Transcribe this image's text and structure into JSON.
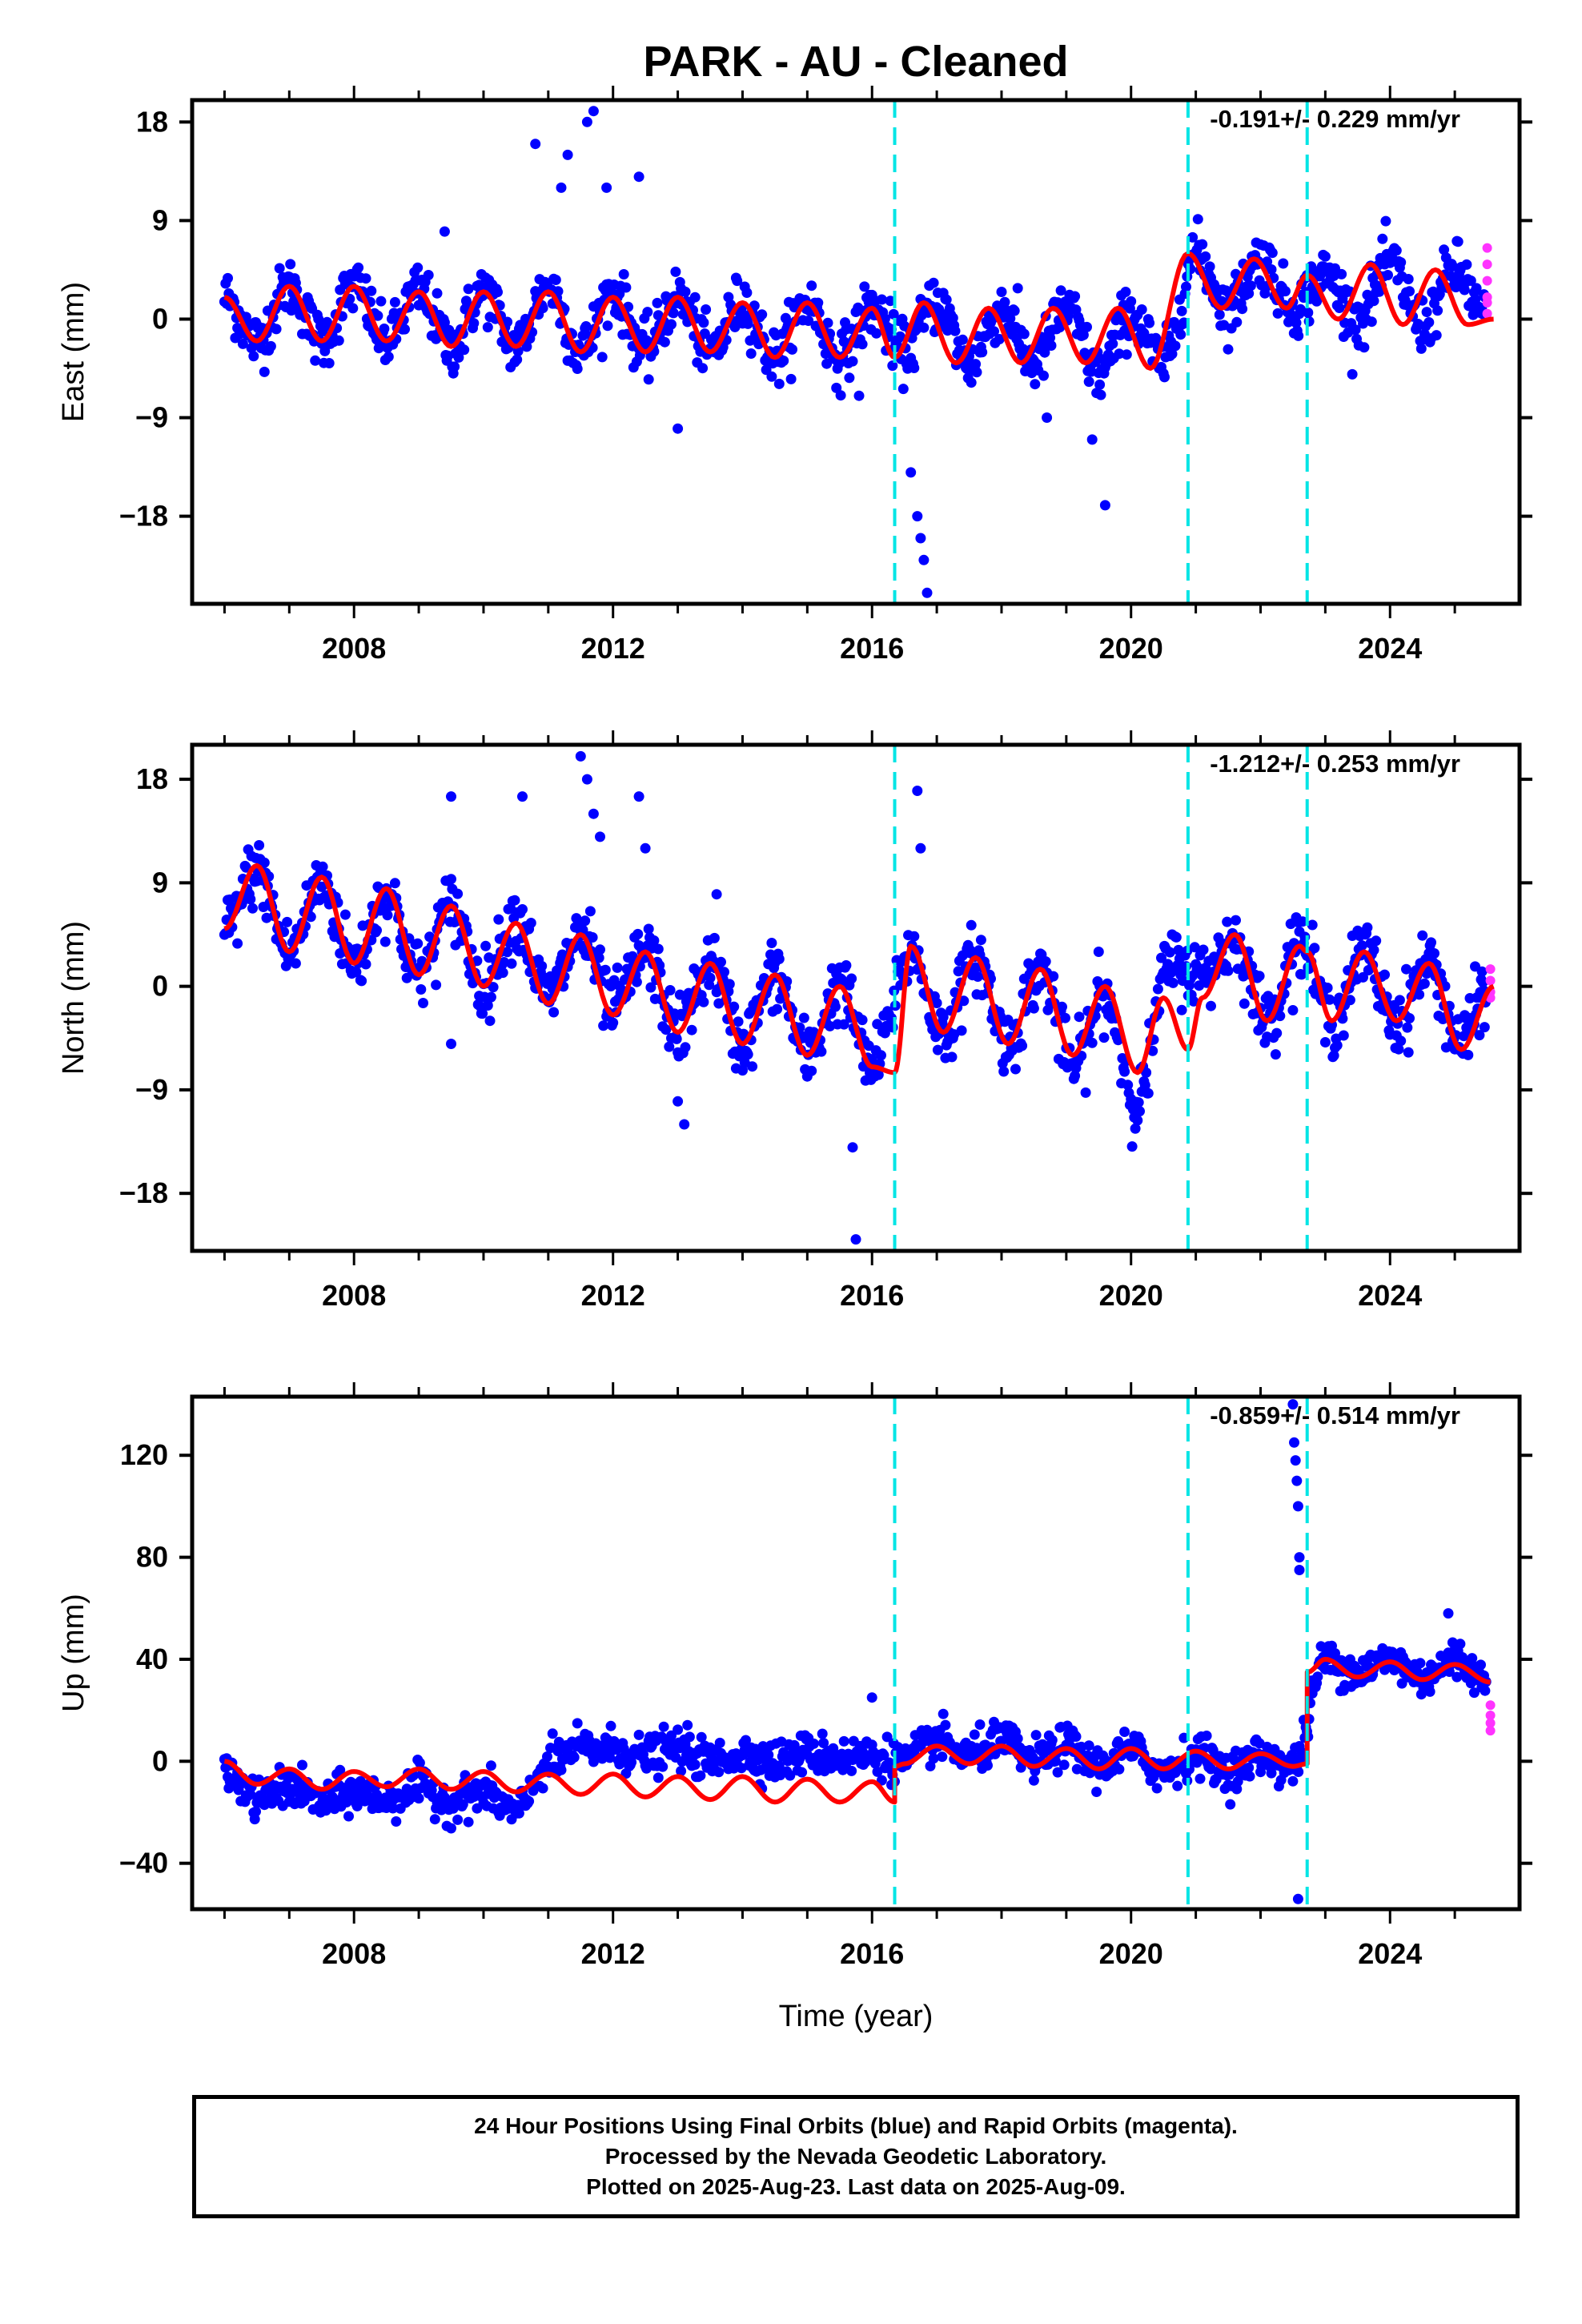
{
  "title": "PARK  - AU - Cleaned",
  "colors": {
    "final_orbits": "#0000ff",
    "rapid_orbits": "#ff33ff",
    "model": "#ff0000",
    "breaks": "#00e5e5",
    "frame": "#000000"
  },
  "footer": {
    "line1": "24 Hour Positions Using Final Orbits (blue) and Rapid Orbits (magenta).",
    "line2": "Processed by the Nevada Geodetic Laboratory.",
    "line3": "Plotted on 2025-Aug-23. Last data on 2025-Aug-09."
  },
  "chart_data": [
    {
      "type": "scatter",
      "ylabel": "East (mm)",
      "xlabel": "",
      "xlim": [
        2005.5,
        2026.0
      ],
      "ylim": [
        -26,
        20
      ],
      "xticks": [
        "2008",
        "2012",
        "2016",
        "2020",
        "2024"
      ],
      "xtick_values": [
        2008,
        2012,
        2016,
        2020,
        2024
      ],
      "yticks": [
        "18",
        "9",
        "0",
        "−9",
        "−18"
      ],
      "ytick_values": [
        18,
        9,
        0,
        -9,
        -18
      ],
      "rate_label": "-0.191+/- 0.229 mm/yr",
      "breaks": [
        2016.35,
        2020.88,
        2022.72
      ],
      "model": {
        "x": [
          2006.0,
          2006.5,
          2007.0,
          2007.5,
          2008.0,
          2008.5,
          2009.0,
          2009.5,
          2010.0,
          2010.5,
          2011.0,
          2011.5,
          2012.0,
          2012.5,
          2013.0,
          2013.5,
          2014.0,
          2014.5,
          2015.0,
          2015.5,
          2016.0,
          2016.35,
          2016.8,
          2017.3,
          2017.8,
          2018.3,
          2018.8,
          2019.3,
          2019.8,
          2020.3,
          2020.88,
          2021.4,
          2021.9,
          2022.4,
          2022.72,
          2023.2,
          2023.7,
          2024.2,
          2024.7,
          2025.2,
          2025.6
        ],
        "y": [
          2.0,
          -2.0,
          3.0,
          -2.0,
          3.0,
          -2.0,
          2.5,
          -2.5,
          2.5,
          -2.5,
          2.5,
          -3.0,
          2.0,
          -3.0,
          2.0,
          -3.0,
          1.5,
          -3.5,
          1.5,
          -3.5,
          1.0,
          -3.5,
          1.5,
          -4.0,
          1.0,
          -4.0,
          1.0,
          -4.0,
          1.0,
          -4.5,
          6.0,
          1.0,
          5.5,
          1.0,
          4.0,
          0.0,
          5.0,
          -0.5,
          4.5,
          -0.5,
          0.0
        ]
      },
      "scatter_series": [
        {
          "x": [
            2006.0,
            2006.5,
            2007.0,
            2007.5,
            2008.0,
            2008.5,
            2009.0,
            2009.5,
            2010.0,
            2010.5,
            2011.0,
            2011.5,
            2012.0,
            2012.5,
            2013.0,
            2013.5,
            2014.0,
            2014.5,
            2015.0,
            2015.5,
            2016.0,
            2016.5,
            2017.0,
            2017.5,
            2018.0,
            2018.5,
            2019.0,
            2019.5,
            2020.0,
            2020.5,
            2021.0,
            2021.5,
            2022.0,
            2022.5,
            2023.0,
            2023.5,
            2024.0,
            2024.5,
            2025.0,
            2025.5
          ],
          "y": [
            2.0,
            -2.0,
            3.0,
            -2.0,
            3.0,
            -2.0,
            2.5,
            -2.5,
            2.5,
            -2.5,
            3.0,
            -3.0,
            2.5,
            -3.0,
            2.0,
            -3.0,
            1.5,
            -3.5,
            1.5,
            -3.5,
            1.0,
            -3.0,
            1.5,
            -4.0,
            1.0,
            -4.0,
            1.0,
            -5.0,
            0.5,
            -4.0,
            6.0,
            1.0,
            5.5,
            1.0,
            4.0,
            0.0,
            5.0,
            -0.5,
            4.5,
            0.0
          ]
        }
      ],
      "scatter_noise": 2.2,
      "outliers": {
        "x": [
          2010.8,
          2011.2,
          2011.3,
          2011.6,
          2011.7,
          2011.9,
          2012.4,
          2009.4,
          2016.6,
          2016.7,
          2016.75,
          2016.8,
          2016.85,
          2018.7,
          2019.4,
          2019.6,
          2013.0,
          2015.8
        ],
        "y": [
          16,
          12,
          15,
          18,
          19,
          12,
          13,
          8,
          -14,
          -18,
          -20,
          -22,
          -25,
          -9,
          -11,
          -17,
          -10,
          -7
        ]
      },
      "rapid": {
        "x": [
          2025.5,
          2025.5,
          2025.5,
          2025.5,
          2025.5,
          2025.5
        ],
        "y": [
          6.5,
          5.0,
          3.5,
          2.0,
          0.5,
          1.5
        ]
      }
    },
    {
      "type": "scatter",
      "ylabel": "North (mm)",
      "xlabel": "",
      "xlim": [
        2005.5,
        2026.0
      ],
      "ylim": [
        -23,
        21
      ],
      "xticks": [
        "2008",
        "2012",
        "2016",
        "2020",
        "2024"
      ],
      "xtick_values": [
        2008,
        2012,
        2016,
        2020,
        2024
      ],
      "yticks": [
        "18",
        "9",
        "0",
        "−9",
        "−18"
      ],
      "ytick_values": [
        18,
        9,
        0,
        -9,
        -18
      ],
      "rate_label": "-1.212+/- 0.253 mm/yr",
      "breaks": [
        2016.35,
        2020.88,
        2022.72
      ],
      "model": {
        "x": [
          2006.0,
          2006.5,
          2007.0,
          2007.5,
          2008.0,
          2008.5,
          2009.0,
          2009.5,
          2010.0,
          2010.5,
          2011.0,
          2011.5,
          2012.0,
          2012.5,
          2013.0,
          2013.5,
          2014.0,
          2014.5,
          2015.0,
          2015.5,
          2016.0,
          2016.35,
          2016.6,
          2017.1,
          2017.6,
          2018.1,
          2018.6,
          2019.1,
          2019.6,
          2020.1,
          2020.5,
          2020.88,
          2021.1,
          2021.6,
          2022.1,
          2022.6,
          2022.72,
          2023.1,
          2023.6,
          2024.1,
          2024.6,
          2025.1,
          2025.6
        ],
        "y": [
          5.0,
          10.5,
          3.0,
          9.5,
          2.0,
          8.5,
          1.0,
          7.0,
          0.0,
          5.5,
          -1.5,
          4.5,
          -2.5,
          3.0,
          -4.0,
          2.0,
          -5.0,
          1.0,
          -6.0,
          0.0,
          -7.0,
          -7.5,
          3.5,
          -4.0,
          2.5,
          -5.0,
          1.5,
          -6.0,
          0.0,
          -7.5,
          -1.0,
          -5.5,
          -1.0,
          4.5,
          -3.0,
          3.5,
          3.0,
          -3.0,
          3.0,
          -3.0,
          2.0,
          -5.5,
          0.0
        ]
      },
      "scatter_series": [
        {
          "x": [
            2006.0,
            2006.5,
            2007.0,
            2007.5,
            2008.0,
            2008.5,
            2009.0,
            2009.5,
            2010.0,
            2010.5,
            2011.0,
            2011.5,
            2012.0,
            2012.5,
            2013.0,
            2013.5,
            2014.0,
            2014.5,
            2015.0,
            2015.5,
            2016.0,
            2016.6,
            2017.1,
            2017.6,
            2018.1,
            2018.6,
            2019.1,
            2019.6,
            2020.1,
            2020.6,
            2021.1,
            2021.6,
            2022.1,
            2022.6,
            2023.1,
            2023.6,
            2024.1,
            2024.6,
            2025.1,
            2025.5
          ],
          "y": [
            5.0,
            10.0,
            3.0,
            9.0,
            2.0,
            8.0,
            1.0,
            7.0,
            0.0,
            6.0,
            -1.0,
            4.5,
            -2.0,
            3.0,
            -4.0,
            2.0,
            -5.0,
            1.0,
            -6.0,
            0.0,
            -7.0,
            3.0,
            -4.0,
            2.5,
            -5.0,
            1.5,
            -7.0,
            -1.0,
            -10.0,
            2.0,
            1.0,
            4.0,
            -3.0,
            4.0,
            -3.0,
            3.0,
            -3.0,
            2.0,
            -5.0,
            0.0
          ]
        }
      ],
      "scatter_noise": 2.4,
      "outliers": {
        "x": [
          2009.5,
          2010.6,
          2011.5,
          2011.6,
          2011.7,
          2011.8,
          2012.4,
          2012.5,
          2013.0,
          2013.1,
          2009.5,
          2015.7,
          2015.75,
          2016.7,
          2016.75,
          2019.5,
          2013.6
        ],
        "y": [
          16.5,
          16.5,
          20,
          18,
          15,
          13,
          16.5,
          12,
          -10,
          -12,
          -5,
          -14,
          -22,
          17,
          12,
          3,
          8
        ]
      },
      "rapid": {
        "x": [
          2025.55,
          2025.55,
          2025.55,
          2025.55
        ],
        "y": [
          1.5,
          0.5,
          -0.5,
          -1.0
        ]
      }
    },
    {
      "type": "scatter",
      "ylabel": "Up (mm)",
      "xlabel": "Time (year)",
      "xlim": [
        2005.5,
        2026.0
      ],
      "ylim": [
        -58,
        143
      ],
      "xticks": [
        "2008",
        "2012",
        "2016",
        "2020",
        "2024"
      ],
      "xtick_values": [
        2008,
        2012,
        2016,
        2020,
        2024
      ],
      "yticks": [
        "120",
        "80",
        "40",
        "0",
        "−40"
      ],
      "ytick_values": [
        120,
        80,
        40,
        0,
        -40
      ],
      "rate_label": "-0.859+/- 0.514 mm/yr",
      "breaks": [
        2016.35,
        2020.88,
        2022.72
      ],
      "model": {
        "x": [
          2006.0,
          2006.5,
          2007.0,
          2007.5,
          2008.0,
          2008.5,
          2009.0,
          2009.5,
          2010.0,
          2010.5,
          2011.0,
          2011.5,
          2012.0,
          2012.5,
          2013.0,
          2013.5,
          2014.0,
          2014.5,
          2015.0,
          2015.5,
          2016.0,
          2016.35,
          2016.36,
          2016.5,
          2017.0,
          2017.5,
          2018.0,
          2018.5,
          2019.0,
          2019.5,
          2020.0,
          2020.5,
          2021.0,
          2021.5,
          2022.0,
          2022.5,
          2022.72,
          2022.73,
          2023.0,
          2023.5,
          2024.0,
          2024.5,
          2025.0,
          2025.55
        ],
        "y": [
          0,
          -9,
          -3,
          -11,
          -4,
          -10,
          -3,
          -11,
          -4,
          -12,
          -5,
          -13,
          -5,
          -14,
          -6,
          -15,
          -6,
          -16,
          -7,
          -16,
          -8,
          -16,
          -2,
          -1,
          6,
          -1,
          6,
          -2,
          5,
          -3,
          5,
          -3,
          4,
          -3,
          3,
          -2,
          -1,
          35,
          40,
          33,
          39,
          32,
          38,
          31
        ]
      },
      "scatter_series": [
        {
          "x": [
            2006.0,
            2006.5,
            2007.0,
            2007.5,
            2008.0,
            2008.5,
            2009.0,
            2009.5,
            2010.0,
            2010.5,
            2011.0,
            2011.5,
            2012.0,
            2012.5,
            2013.0,
            2013.5,
            2014.0,
            2014.5,
            2015.0,
            2015.5,
            2016.0,
            2016.5,
            2017.0,
            2017.5,
            2018.0,
            2018.5,
            2019.0,
            2019.5,
            2020.0,
            2020.5,
            2021.0,
            2021.5,
            2022.0,
            2022.5,
            2023.0,
            2023.5,
            2024.0,
            2024.5,
            2025.0,
            2025.5
          ],
          "y": [
            -5,
            -15,
            -10,
            -16,
            -12,
            -15,
            -10,
            -16,
            -12,
            -20,
            -1,
            5,
            5,
            2,
            5,
            0,
            3,
            0,
            3,
            2,
            2,
            0,
            8,
            2,
            8,
            0,
            6,
            -2,
            4,
            -4,
            3,
            -4,
            2,
            -2,
            40,
            35,
            40,
            33,
            40,
            32
          ]
        }
      ],
      "scatter_noise": 6.5,
      "outliers": {
        "x": [
          2022.5,
          2022.52,
          2022.54,
          2022.56,
          2022.58,
          2022.6,
          2022.6,
          2022.58,
          2024.9,
          2016.0
        ],
        "y": [
          140,
          125,
          118,
          110,
          100,
          80,
          75,
          -54,
          58,
          25
        ]
      },
      "rapid": {
        "x": [
          2025.55,
          2025.55,
          2025.55,
          2025.55
        ],
        "y": [
          22,
          18,
          15,
          12
        ]
      }
    }
  ]
}
